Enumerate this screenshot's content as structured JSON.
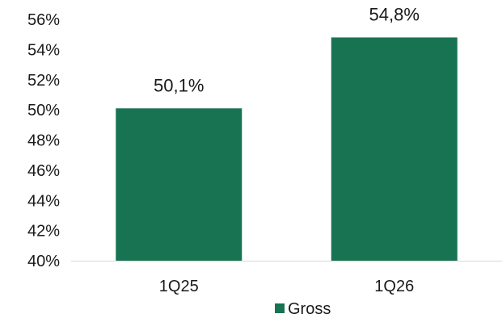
{
  "chart_data": {
    "type": "bar",
    "categories": [
      "1Q25",
      "1Q26"
    ],
    "series": [
      {
        "name": "Gross",
        "values": [
          50.1,
          54.8
        ],
        "color": "#187352"
      }
    ],
    "data_labels": [
      "50,1%",
      "54,8%"
    ],
    "ylim": [
      40,
      56
    ],
    "yticks": [
      40,
      42,
      44,
      46,
      48,
      50,
      52,
      54,
      56
    ],
    "ytick_labels": [
      "40%",
      "42%",
      "44%",
      "46%",
      "48%",
      "50%",
      "52%",
      "54%",
      "56%"
    ],
    "grid": false,
    "legend": {
      "position": "bottom",
      "entries": [
        "Gross"
      ]
    },
    "title": "",
    "xlabel": "",
    "ylabel": ""
  }
}
